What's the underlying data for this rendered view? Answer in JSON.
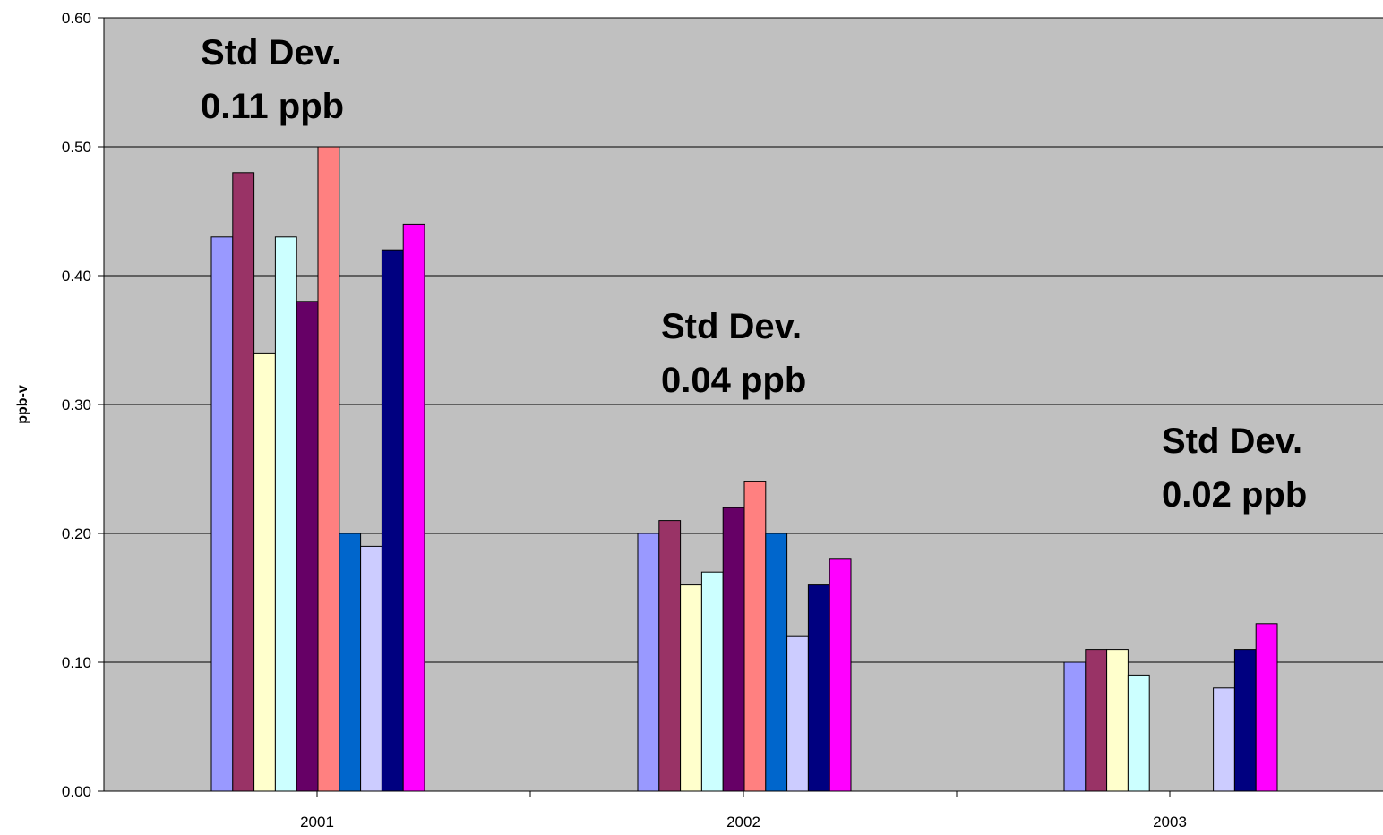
{
  "chart_data": {
    "type": "bar",
    "title": "",
    "xlabel": "",
    "ylabel": "ppb-v",
    "ylim": [
      0,
      0.6
    ],
    "yticks": [
      "0.00",
      "0.10",
      "0.20",
      "0.30",
      "0.40",
      "0.50",
      "0.60"
    ],
    "grid": true,
    "legend": "none",
    "categories": [
      "2001",
      "2002",
      "2003"
    ],
    "series": [
      {
        "color": "#9999FF",
        "values": [
          0.43,
          0.2,
          0.1
        ]
      },
      {
        "color": "#993366",
        "values": [
          0.48,
          0.21,
          0.11
        ]
      },
      {
        "color": "#FFFFCC",
        "values": [
          0.34,
          0.16,
          0.11
        ]
      },
      {
        "color": "#CCFFFF",
        "values": [
          0.43,
          0.17,
          0.09
        ]
      },
      {
        "color": "#660066",
        "values": [
          0.38,
          0.22,
          null
        ]
      },
      {
        "color": "#FF8080",
        "values": [
          0.5,
          0.24,
          null
        ]
      },
      {
        "color": "#0066CC",
        "values": [
          0.2,
          0.2,
          null
        ]
      },
      {
        "color": "#CCCCFF",
        "values": [
          0.19,
          0.12,
          0.08
        ]
      },
      {
        "color": "#000080",
        "values": [
          0.42,
          0.16,
          0.11
        ]
      },
      {
        "color": "#FF00FF",
        "values": [
          0.44,
          0.18,
          0.13
        ]
      }
    ],
    "annotations": [
      {
        "line1": "Std Dev.",
        "line2": "0.11 ppb"
      },
      {
        "line1": "Std Dev.",
        "line2": "0.04 ppb"
      },
      {
        "line1": "Std Dev.",
        "line2": "0.02 ppb"
      }
    ],
    "plot_background": "#C0C0C0"
  }
}
